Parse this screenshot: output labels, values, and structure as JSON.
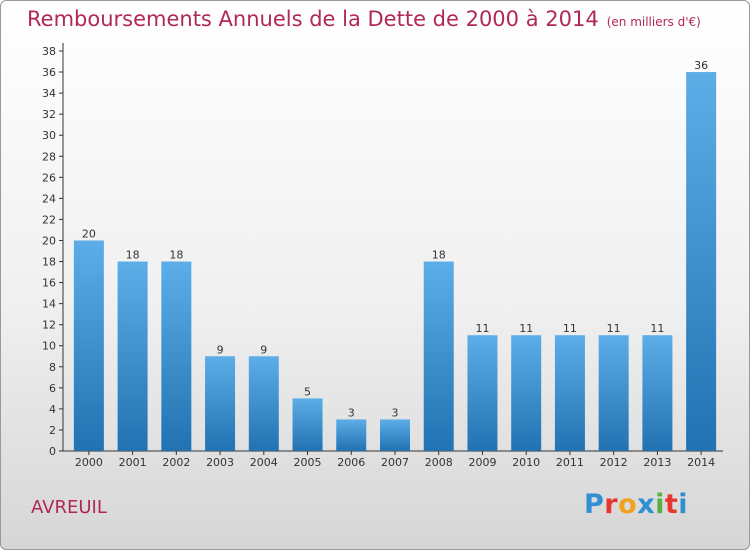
{
  "title": "Remboursements Annuels de la Dette de 2000 à 2014",
  "subtitle": "(en milliers d'€)",
  "place_name": "AVREUIL",
  "logo": {
    "text": "Proxiti",
    "letters": [
      {
        "char": "P",
        "color": "#2e8fd1"
      },
      {
        "char": "r",
        "color": "#e7362d"
      },
      {
        "char": "o",
        "color": "#f0a21f"
      },
      {
        "char": "x",
        "color": "#2e8fd1"
      },
      {
        "char": "i",
        "color": "#58b043"
      },
      {
        "char": "t",
        "color": "#e7362d"
      },
      {
        "char": "i",
        "color": "#2e8fd1"
      }
    ]
  },
  "colors": {
    "bar_light": "#5dade8",
    "bar_dark": "#2272b2",
    "title": "#b0285a",
    "axis": "#333333"
  },
  "chart_data": {
    "type": "bar",
    "title": "Remboursements Annuels de la Dette de 2000 à 2014",
    "subtitle": "(en milliers d'€)",
    "categories": [
      "2000",
      "2001",
      "2002",
      "2003",
      "2004",
      "2005",
      "2006",
      "2007",
      "2008",
      "2009",
      "2010",
      "2011",
      "2012",
      "2013",
      "2014"
    ],
    "values": [
      20,
      18,
      18,
      9,
      9,
      5,
      3,
      3,
      18,
      11,
      11,
      11,
      11,
      11,
      36
    ],
    "ylim": [
      0,
      38
    ],
    "yticks": [
      0,
      2,
      4,
      6,
      8,
      10,
      12,
      14,
      16,
      18,
      20,
      22,
      24,
      26,
      28,
      30,
      32,
      34,
      36,
      38
    ],
    "data_labels": true,
    "grid": false,
    "legend": "none"
  }
}
